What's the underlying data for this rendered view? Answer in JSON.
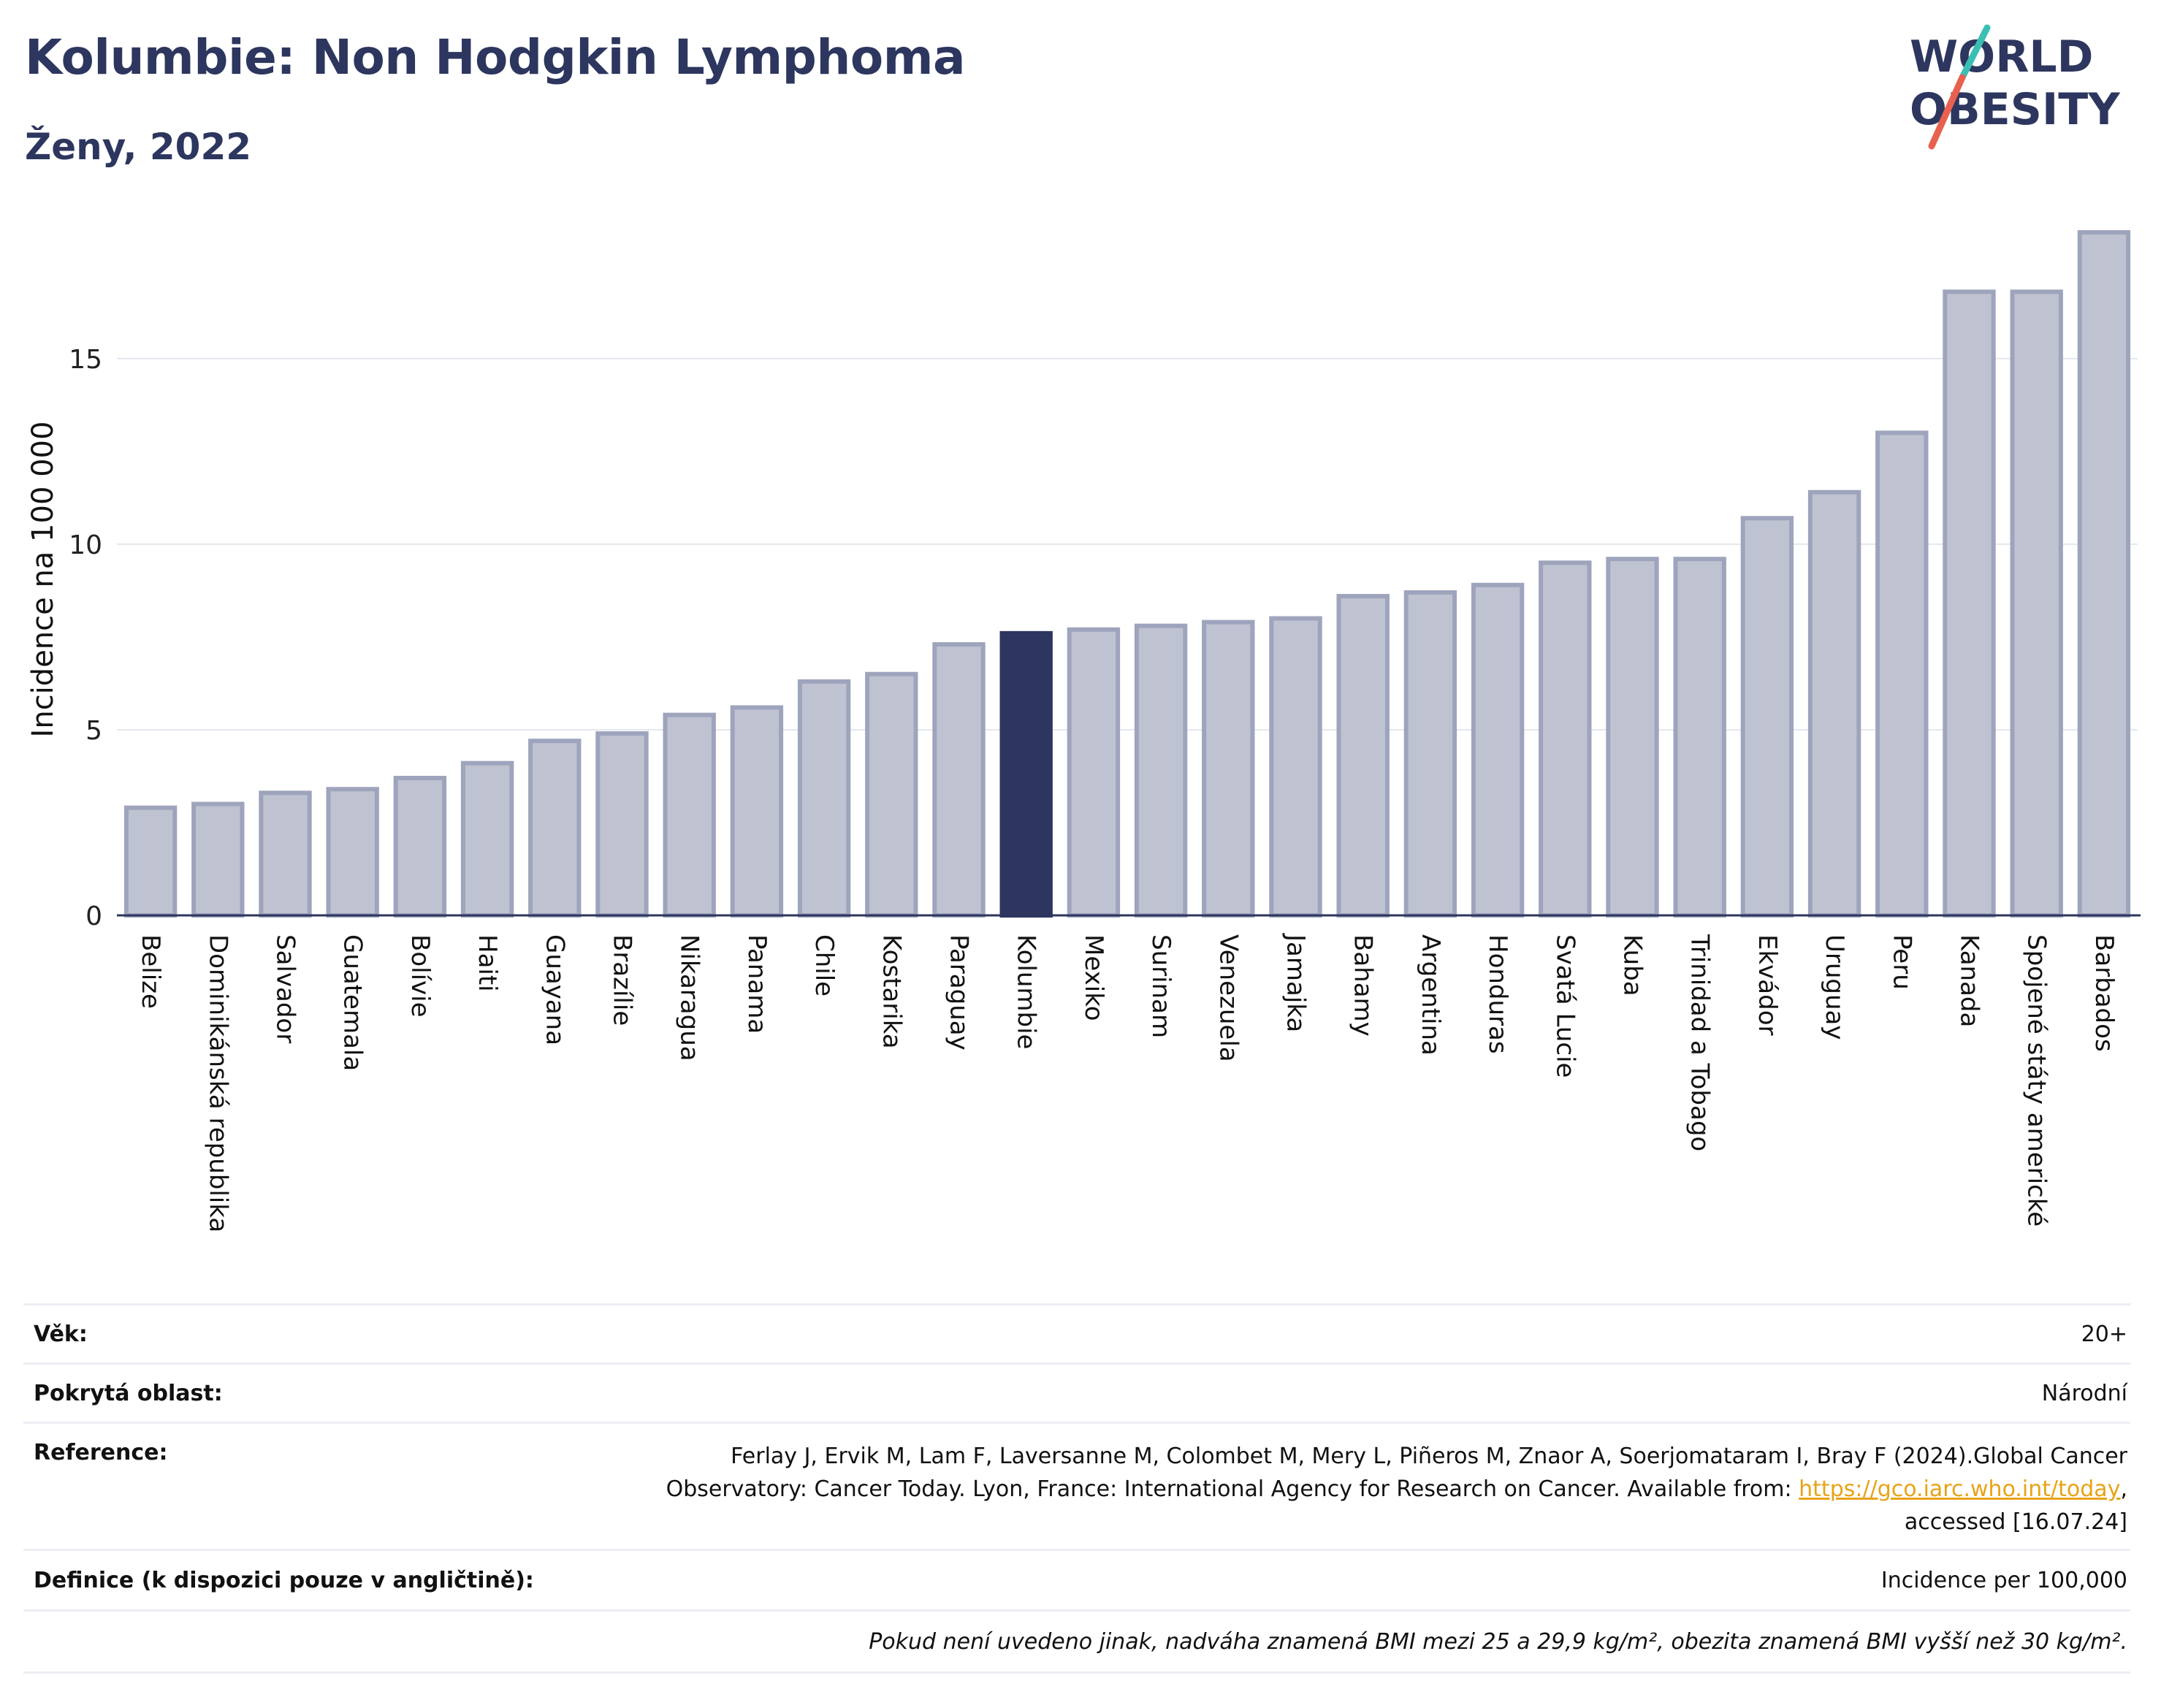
{
  "header": {
    "title": "Kolumbie: Non Hodgkin Lymphoma",
    "subtitle": "Ženy, 2022"
  },
  "logo": {
    "line1": "WORLD",
    "line2": "OBESITY",
    "colors": {
      "text": "#2d365e",
      "slash_teal": "#3bbfb3",
      "slash_red": "#e8614f"
    }
  },
  "chart_data": {
    "type": "bar",
    "title": "",
    "xlabel": "",
    "ylabel": "Incidence na 100 000",
    "ylim": [
      0,
      18.5
    ],
    "yticks": [
      0,
      5,
      10,
      15
    ],
    "grid": true,
    "highlight": "Kolumbie",
    "colors": {
      "bar": "#bfc3d1",
      "bar_border": "#9ea4bc",
      "highlight": "#2d365e"
    },
    "categories": [
      "Belize",
      "Dominikánská republika",
      "Salvador",
      "Guatemala",
      "Bolívie",
      "Haiti",
      "Guayana",
      "Brazílie",
      "Nikaragua",
      "Panama",
      "Chile",
      "Kostarika",
      "Paraguay",
      "Kolumbie",
      "Mexiko",
      "Surinam",
      "Venezuela",
      "Jamajka",
      "Bahamy",
      "Argentina",
      "Honduras",
      "Svatá Lucie",
      "Kuba",
      "Trinidad a Tobago",
      "Ekvádor",
      "Uruguay",
      "Peru",
      "Kanada",
      "Spojené státy americké",
      "Barbados"
    ],
    "values": [
      2.9,
      3.0,
      3.3,
      3.4,
      3.7,
      4.1,
      4.7,
      4.9,
      5.4,
      5.6,
      6.3,
      6.5,
      7.3,
      7.6,
      7.7,
      7.8,
      7.9,
      8.0,
      8.6,
      8.7,
      8.9,
      9.5,
      9.6,
      9.6,
      10.7,
      11.4,
      13.0,
      16.8,
      16.8,
      18.4
    ]
  },
  "info": {
    "age_label": "Věk:",
    "age_value": "20+",
    "area_label": "Pokrytá oblast:",
    "area_value": "Národní",
    "ref_label": "Reference:",
    "ref_line1": "Ferlay J, Ervik M, Lam F, Laversanne M, Colombet M, Mery L, Piñeros M, Znaor A, Soerjomataram I, Bray F (2024).Global Cancer",
    "ref_line2_prefix": "Observatory: Cancer Today. Lyon, France: International Agency for Research on Cancer. Available from:",
    "ref_link": "https://gco.iarc.who.int/today",
    "ref_line2_suffix": ",",
    "ref_line3": "accessed [16.07.24]",
    "def_label": "Definice (k dispozici pouze v angličtině):",
    "def_value": "Incidence per 100,000",
    "note": "Pokud není uvedeno jinak, nadváha znamená BMI mezi 25 a 29,9 kg/m², obezita znamená BMI vyšší než 30 kg/m²."
  }
}
